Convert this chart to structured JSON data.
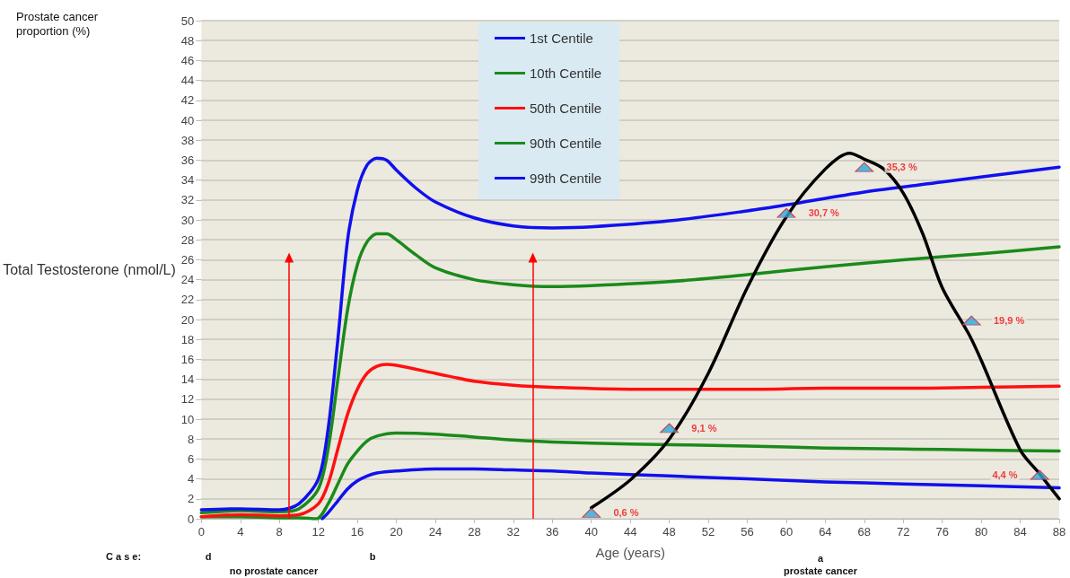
{
  "chart_data": {
    "type": "line",
    "xlabel": "Age (years)",
    "ylabel": "Total Testosterone (nmol/L)",
    "xlim": [
      0,
      88
    ],
    "ylim": [
      0,
      50
    ],
    "xticks": [
      0,
      4,
      8,
      12,
      16,
      20,
      24,
      28,
      32,
      36,
      40,
      44,
      48,
      52,
      56,
      60,
      64,
      68,
      72,
      76,
      80,
      84,
      88
    ],
    "yticks": [
      0,
      2,
      4,
      6,
      8,
      10,
      12,
      14,
      16,
      18,
      20,
      22,
      24,
      26,
      28,
      30,
      32,
      34,
      36,
      38,
      40,
      42,
      44,
      46,
      48,
      50
    ],
    "grid": "y",
    "legend": "top",
    "marker": "none",
    "line_style": "solid",
    "series": [
      {
        "name": "1st Centile",
        "color": "#1010ee",
        "x": [
          12.4,
          13,
          14,
          15,
          16,
          17,
          18,
          20,
          24,
          28,
          32,
          36,
          40,
          48,
          56,
          64,
          72,
          80,
          88
        ],
        "values": [
          0,
          0.6,
          1.8,
          3.0,
          3.8,
          4.3,
          4.6,
          4.8,
          5.0,
          5.0,
          4.9,
          4.8,
          4.6,
          4.3,
          4.0,
          3.7,
          3.5,
          3.3,
          3.1
        ]
      },
      {
        "name": "10th Centile",
        "color": "#1a8a1a",
        "x": [
          0,
          4,
          8,
          10,
          11.8,
          13,
          14,
          15,
          16,
          17,
          18,
          20,
          24,
          28,
          32,
          36,
          44,
          56,
          64,
          72,
          80,
          88
        ],
        "values": [
          0.2,
          0.2,
          0.1,
          0.1,
          0,
          1.5,
          3.5,
          5.5,
          6.8,
          7.8,
          8.3,
          8.6,
          8.5,
          8.2,
          7.9,
          7.7,
          7.5,
          7.3,
          7.1,
          7.0,
          6.9,
          6.8
        ]
      },
      {
        "name": "50th Centile",
        "color": "#ff1010",
        "x": [
          0,
          4,
          8,
          10,
          12,
          13,
          14,
          15,
          16,
          17,
          18,
          19,
          20,
          24,
          28,
          32,
          36,
          44,
          56,
          64,
          72,
          80,
          88
        ],
        "values": [
          0.2,
          0.4,
          0.3,
          0.4,
          1.5,
          3.5,
          7,
          10.5,
          13,
          14.6,
          15.3,
          15.5,
          15.4,
          14.6,
          13.8,
          13.4,
          13.2,
          13.0,
          13.0,
          13.1,
          13.1,
          13.2,
          13.3
        ]
      },
      {
        "name": "90th Centile",
        "color": "#1a8a1a",
        "x": [
          0,
          4,
          8,
          10,
          12,
          13,
          14,
          15,
          16,
          17,
          18,
          19,
          20,
          22,
          24,
          28,
          32,
          36,
          40,
          48,
          56,
          64,
          72,
          80,
          88
        ],
        "values": [
          0.6,
          0.8,
          0.7,
          1,
          3,
          7,
          14,
          21,
          25.5,
          27.8,
          28.6,
          28.6,
          28,
          26.5,
          25.2,
          24,
          23.5,
          23.3,
          23.4,
          23.8,
          24.5,
          25.3,
          26,
          26.6,
          27.3
        ]
      },
      {
        "name": "99th Centile",
        "color": "#1010ee",
        "x": [
          0,
          4,
          8,
          10,
          12,
          13,
          14,
          15,
          16,
          17,
          18,
          19,
          20,
          22,
          24,
          28,
          32,
          36,
          40,
          48,
          56,
          60,
          68,
          76,
          88
        ],
        "values": [
          0.9,
          1.0,
          0.9,
          1.5,
          4,
          9,
          18,
          28,
          33,
          35.5,
          36.2,
          36,
          35,
          33.2,
          31.8,
          30.2,
          29.4,
          29.2,
          29.3,
          29.9,
          30.9,
          31.5,
          32.8,
          33.8,
          35.3
        ]
      },
      {
        "color": "#000000",
        "x": [
          40,
          44,
          48,
          52,
          56,
          60,
          64,
          66.5,
          68,
          70,
          72,
          74,
          76,
          78.8,
          80,
          84,
          86,
          88
        ],
        "values": [
          1.1,
          3.9,
          8.0,
          14.6,
          23.2,
          30.3,
          35.1,
          36.7,
          36.1,
          35.1,
          32.7,
          28.6,
          23.2,
          18.4,
          15.9,
          6.9,
          4.5,
          2.0
        ]
      },
      {
        "type": "scatter",
        "marker": "triangle",
        "color": "#29a8e0",
        "x": [
          40,
          48,
          60,
          68,
          79,
          86
        ],
        "values": [
          0.6,
          9.1,
          30.7,
          35.3,
          19.9,
          4.4
        ],
        "value_labels": [
          "0,6 %",
          "9,1 %",
          "30,7 %",
          "35,3 %",
          "19,9 %",
          "4,4 %"
        ]
      }
    ],
    "ref_lines": [
      {
        "axis": "x",
        "value": 9,
        "color": "#ff0000"
      },
      {
        "axis": "x",
        "value": 34,
        "color": "#ff0000"
      }
    ],
    "annotations": [
      "Prostate cancer proportion (%)",
      "C a s e:",
      "d",
      "no prostate cancer",
      "b",
      "a",
      "prostate cancer"
    ]
  }
}
